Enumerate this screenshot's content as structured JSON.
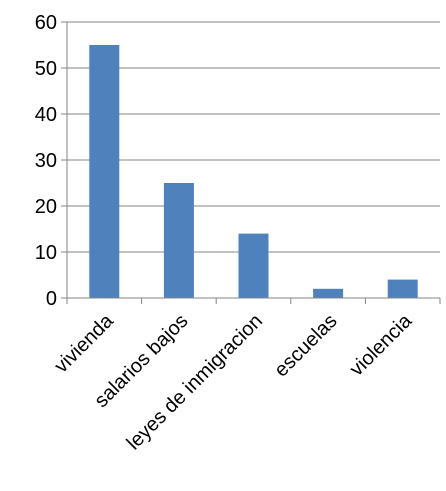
{
  "chart_data": {
    "type": "bar",
    "categories": [
      "vivienda",
      "salarios bajos",
      "leyes de inmigracion",
      "escuelas",
      "violencia"
    ],
    "values": [
      55,
      25,
      14,
      2,
      4
    ],
    "title": "",
    "xlabel": "",
    "ylabel": "",
    "ylim": [
      0,
      60
    ],
    "yticks": [
      0,
      10,
      20,
      30,
      40,
      50,
      60
    ],
    "grid": true,
    "legend": "none",
    "colors": {
      "bar": "#4F81BD",
      "grid": "#868686",
      "axis": "#868686",
      "text": "#000000"
    }
  }
}
